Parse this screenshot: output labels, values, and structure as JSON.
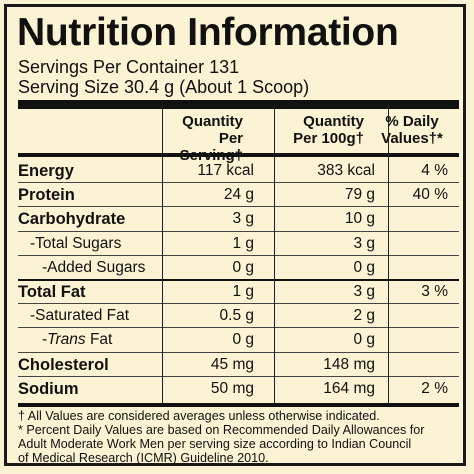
{
  "title": "Nutrition Information",
  "servings_per_container": "Servings Per Container 131",
  "serving_size": "Serving Size 30.4 g (About 1 Scoop)",
  "headers": {
    "per_serving_line1": "Quantity",
    "per_serving_line2": "Per Serving†",
    "per_100g_line1": "Quantity",
    "per_100g_line2": "Per 100g†",
    "daily_line1": "% Daily",
    "daily_line2": "Values†*"
  },
  "rows": [
    {
      "label": "Energy",
      "per_serving": "117 kcal",
      "per_100g": "383 kcal",
      "daily": "4 %"
    },
    {
      "label": "Protein",
      "per_serving": "24 g",
      "per_100g": "79 g",
      "daily": "40 %"
    },
    {
      "label": "Carbohydrate",
      "per_serving": "3 g",
      "per_100g": "10 g",
      "daily": ""
    },
    {
      "label": "-Total Sugars",
      "per_serving": "1 g",
      "per_100g": "3 g",
      "daily": ""
    },
    {
      "label": "-Added Sugars",
      "per_serving": "0 g",
      "per_100g": "0 g",
      "daily": ""
    },
    {
      "label": "Total Fat",
      "per_serving": "1 g",
      "per_100g": "3 g",
      "daily": "3 %"
    },
    {
      "label": "-Saturated Fat",
      "per_serving": "0.5 g",
      "per_100g": "2 g",
      "daily": ""
    },
    {
      "label_prefix": "-",
      "label_italic": "Trans",
      "label_suffix": " Fat",
      "per_serving": "0 g",
      "per_100g": "0 g",
      "daily": ""
    },
    {
      "label": "Cholesterol",
      "per_serving": "45 mg",
      "per_100g": "148 mg",
      "daily": ""
    },
    {
      "label": "Sodium",
      "per_serving": "50 mg",
      "per_100g": "164 mg",
      "daily": "2 %"
    }
  ],
  "footnotes": {
    "line1": "† All Values are considered averages unless otherwise indicated.",
    "line2": "* Percent Daily Values are based on Recommended Daily Allowances for",
    "line3": "Adult Moderate Work Men per serving size according to Indian Council",
    "line4": "of Medical Research (ICMR) Guideline 2010."
  }
}
